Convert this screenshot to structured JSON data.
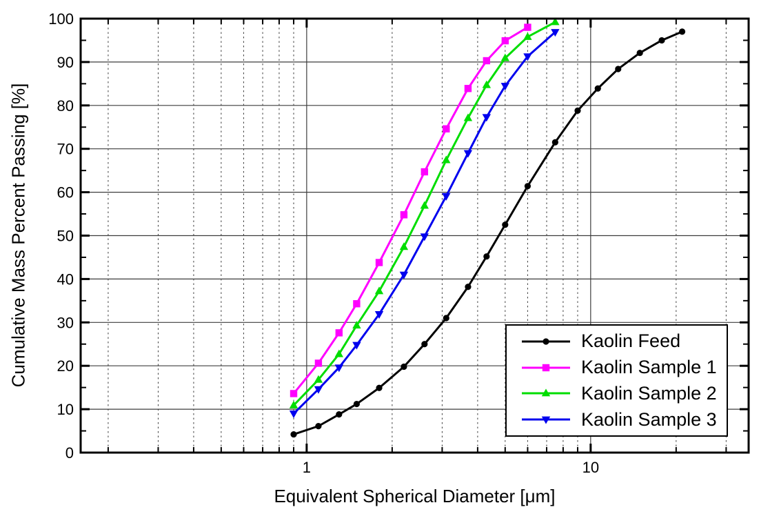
{
  "chart_data": {
    "type": "line",
    "title": "",
    "xlabel": "Equivalent Spherical Diameter [μm]",
    "ylabel": "Cumulative Mass Percent Passing [%]",
    "x_scale": "log",
    "xlim": [
      0.16,
      36
    ],
    "ylim": [
      0,
      100
    ],
    "x_major_ticks": [
      1,
      10
    ],
    "x_tick_labels": [
      "1",
      "10"
    ],
    "x_minor_ticks": [
      0.2,
      0.3,
      0.4,
      0.5,
      0.6,
      0.7,
      0.8,
      0.9,
      2,
      3,
      4,
      5,
      6,
      7,
      8,
      9,
      20,
      30
    ],
    "y_major_tick_step": 10,
    "y_minor_tick_step": 5,
    "y_tick_labels": [
      "0",
      "10",
      "20",
      "30",
      "40",
      "50",
      "60",
      "70",
      "80",
      "90",
      "100"
    ],
    "grid": {
      "vertical_major": "solid",
      "vertical_minor": "dotted",
      "horizontal_major": "solid",
      "line_color": "#3c3c3c"
    },
    "legend": {
      "position": "bottom-right",
      "border": true
    },
    "series": [
      {
        "name": "Kaolin Feed",
        "color": "#000000",
        "marker": "circle",
        "x": [
          0.9,
          1.1,
          1.3,
          1.5,
          1.8,
          2.2,
          2.6,
          3.1,
          3.7,
          4.3,
          5.0,
          6.0,
          7.5,
          9.0,
          10.6,
          12.5,
          14.9,
          17.8,
          21.0
        ],
        "y": [
          4.2,
          6.1,
          8.8,
          11.2,
          14.9,
          19.8,
          25.0,
          31.0,
          38.2,
          45.2,
          52.5,
          61.4,
          71.5,
          78.8,
          83.9,
          88.4,
          92.1,
          95.0,
          97.0
        ]
      },
      {
        "name": "Kaolin Sample 1",
        "color": "#FF00FF",
        "marker": "square",
        "x": [
          0.9,
          1.1,
          1.3,
          1.5,
          1.8,
          2.2,
          2.6,
          3.1,
          3.7,
          4.3,
          5.0,
          6.0
        ],
        "y": [
          13.6,
          20.6,
          27.6,
          34.3,
          43.8,
          54.8,
          64.7,
          74.6,
          83.9,
          90.3,
          94.9,
          98.0
        ]
      },
      {
        "name": "Kaolin Sample 2",
        "color": "#00DD00",
        "marker": "triangle-up",
        "x": [
          0.9,
          1.1,
          1.3,
          1.5,
          1.8,
          2.2,
          2.6,
          3.1,
          3.7,
          4.3,
          5.0,
          6.0,
          7.5
        ],
        "y": [
          10.9,
          16.8,
          22.7,
          29.3,
          37.2,
          47.4,
          56.9,
          67.4,
          77.1,
          84.7,
          90.9,
          95.8,
          99.2
        ]
      },
      {
        "name": "Kaolin Sample 3",
        "color": "#0000EE",
        "marker": "triangle-down",
        "x": [
          0.9,
          1.1,
          1.3,
          1.5,
          1.8,
          2.2,
          2.6,
          3.1,
          3.7,
          4.3,
          5.0,
          6.0,
          7.5
        ],
        "y": [
          9.0,
          14.6,
          19.6,
          24.8,
          31.9,
          41.0,
          49.8,
          59.1,
          69.0,
          77.3,
          84.5,
          91.3,
          96.9
        ]
      }
    ]
  }
}
